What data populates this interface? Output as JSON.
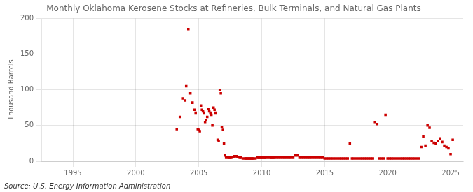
{
  "chart_data": {
    "type": "scatter",
    "title": "Monthly Oklahoma Kerosene Stocks at Refineries, Bulk Terminals, and Natural Gas Plants",
    "ylabel": "Thousand Barrels",
    "annotations": [
      "Source: U.S. Energy Information Administration"
    ],
    "color": "#cc0000",
    "marker": "square",
    "grid": true,
    "xlim": [
      1992.5,
      2026
    ],
    "ylim": [
      0,
      200
    ],
    "xticks": [
      1995,
      2000,
      2005,
      2010,
      2015,
      2020,
      2025
    ],
    "yticks": [
      0,
      50,
      100,
      150,
      200
    ],
    "x": [
      2003.25,
      2003.5,
      2003.75,
      2003.92,
      2004.0,
      2004.17,
      2004.33,
      2004.5,
      2004.67,
      2004.75,
      2004.92,
      2005.0,
      2005.08,
      2005.17,
      2005.25,
      2005.33,
      2005.42,
      2005.5,
      2005.58,
      2005.67,
      2005.75,
      2005.83,
      2005.92,
      2006.0,
      2006.08,
      2006.17,
      2006.25,
      2006.33,
      2006.5,
      2006.58,
      2006.67,
      2006.75,
      2006.83,
      2006.92,
      2007.0,
      2007.08,
      2007.17,
      2007.25,
      2007.33,
      2007.42,
      2007.5,
      2007.58,
      2007.67,
      2007.75,
      2007.83,
      2007.92,
      2008.0,
      2008.08,
      2008.17,
      2008.25,
      2008.33,
      2008.5,
      2008.67,
      2008.75,
      2008.83,
      2008.92,
      2009.0,
      2009.08,
      2009.17,
      2009.25,
      2009.33,
      2009.5,
      2009.67,
      2009.75,
      2009.83,
      2009.92,
      2010.0,
      2010.08,
      2010.17,
      2010.25,
      2010.33,
      2010.5,
      2010.67,
      2010.75,
      2010.83,
      2010.92,
      2011.0,
      2011.17,
      2011.33,
      2011.5,
      2011.67,
      2011.83,
      2012.0,
      2012.17,
      2012.33,
      2012.5,
      2012.67,
      2012.83,
      2013.0,
      2013.17,
      2013.33,
      2013.5,
      2013.67,
      2013.83,
      2014.0,
      2014.17,
      2014.33,
      2014.5,
      2014.67,
      2014.83,
      2015.0,
      2015.17,
      2015.33,
      2015.5,
      2015.67,
      2015.83,
      2016.0,
      2016.17,
      2016.33,
      2016.5,
      2016.67,
      2016.83,
      2017.0,
      2017.17,
      2017.33,
      2017.5,
      2017.67,
      2017.83,
      2018.0,
      2018.17,
      2018.33,
      2018.5,
      2018.67,
      2018.83,
      2019.0,
      2019.17,
      2019.33,
      2019.5,
      2019.67,
      2019.83,
      2020.0,
      2020.17,
      2020.33,
      2020.5,
      2020.67,
      2020.83,
      2021.0,
      2021.17,
      2021.33,
      2021.5,
      2021.67,
      2021.83,
      2022.0,
      2022.17,
      2022.33,
      2022.5,
      2022.67,
      2022.83,
      2023.0,
      2023.17,
      2023.33,
      2023.5,
      2023.67,
      2023.83,
      2024.0,
      2024.17,
      2024.33,
      2024.5,
      2024.67,
      2024.83,
      2025.0,
      2025.17
    ],
    "values": [
      45,
      62,
      88,
      85,
      105,
      185,
      95,
      82,
      72,
      68,
      45,
      44,
      42,
      78,
      72,
      70,
      68,
      55,
      58,
      62,
      73,
      70,
      68,
      65,
      50,
      75,
      72,
      68,
      30,
      28,
      100,
      95,
      48,
      44,
      25,
      8,
      5,
      6,
      5,
      5,
      5,
      5,
      6,
      6,
      7,
      7,
      7,
      6,
      6,
      5,
      5,
      4,
      4,
      4,
      4,
      4,
      4,
      4,
      4,
      4,
      4,
      4,
      5,
      5,
      5,
      5,
      5,
      5,
      5,
      5,
      5,
      5,
      5,
      5,
      5,
      5,
      5,
      5,
      5,
      5,
      5,
      5,
      5,
      5,
      5,
      5,
      8,
      8,
      5,
      5,
      5,
      5,
      5,
      5,
      5,
      5,
      5,
      5,
      5,
      5,
      4,
      4,
      4,
      4,
      4,
      4,
      4,
      4,
      4,
      4,
      4,
      4,
      25,
      4,
      4,
      4,
      4,
      4,
      4,
      4,
      4,
      4,
      4,
      4,
      55,
      52,
      4,
      4,
      4,
      65,
      4,
      4,
      4,
      4,
      4,
      4,
      4,
      4,
      4,
      4,
      4,
      4,
      4,
      4,
      4,
      4,
      20,
      35,
      22,
      50,
      47,
      28,
      26,
      25,
      28,
      32,
      27,
      22,
      20,
      18,
      10,
      30
    ]
  }
}
